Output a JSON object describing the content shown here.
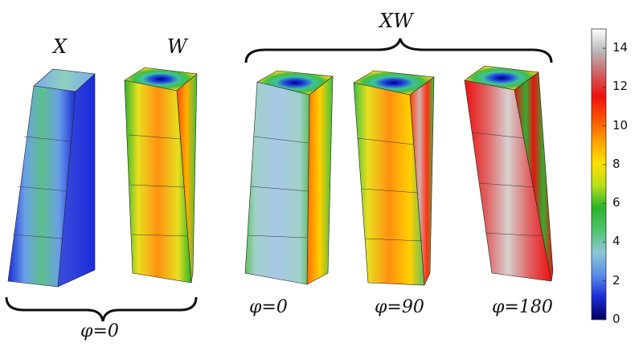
{
  "labels": {
    "x": "X",
    "w": "W",
    "xw": "XW",
    "phi0_left": "φ=0",
    "phi0": "φ=0",
    "phi90": "φ=90",
    "phi180": "φ=180"
  },
  "colorbar": {
    "ticks": [
      "14",
      "12",
      "10",
      "8",
      "6",
      "4",
      "2",
      "0"
    ],
    "min": 0,
    "max": 15,
    "colors": [
      "#000060",
      "#1a2bd8",
      "#5a8ee8",
      "#8fc7d6",
      "#4fc46a",
      "#2ab42a",
      "#b8e01a",
      "#ffe000",
      "#ffa000",
      "#ff5000",
      "#ee1010",
      "#d06060",
      "#b8b8b8",
      "#ffffff"
    ]
  }
}
